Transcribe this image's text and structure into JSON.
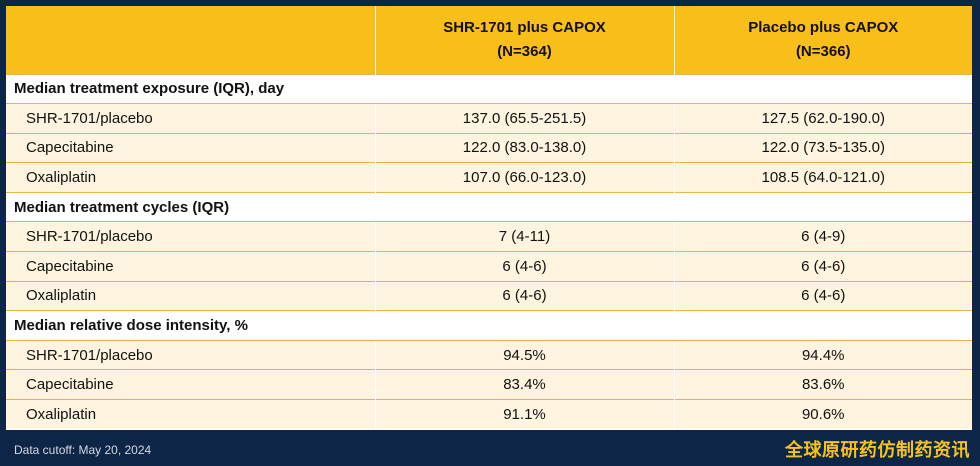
{
  "table": {
    "headers": [
      {
        "label": ""
      },
      {
        "line1": "SHR-1701 plus CAPOX",
        "line2": "(N=364)"
      },
      {
        "line1": "Placebo plus CAPOX",
        "line2": "(N=366)"
      }
    ],
    "sections": [
      {
        "title": "Median treatment exposure (IQR), day",
        "rows": [
          {
            "label": "SHR-1701/placebo",
            "shr": "137.0 (65.5-251.5)",
            "placebo": "127.5 (62.0-190.0)"
          },
          {
            "label": "Capecitabine",
            "shr": "122.0 (83.0-138.0)",
            "placebo": "122.0 (73.5-135.0)"
          },
          {
            "label": "Oxaliplatin",
            "shr": "107.0 (66.0-123.0)",
            "placebo": "108.5 (64.0-121.0)"
          }
        ]
      },
      {
        "title": "Median treatment cycles (IQR)",
        "rows": [
          {
            "label": "SHR-1701/placebo",
            "shr": "7 (4-11)",
            "placebo": "6 (4-9)"
          },
          {
            "label": "Capecitabine",
            "shr": "6 (4-6)",
            "placebo": "6 (4-6)"
          },
          {
            "label": "Oxaliplatin",
            "shr": "6 (4-6)",
            "placebo": "6 (4-6)"
          }
        ]
      },
      {
        "title": "Median relative dose intensity, %",
        "rows": [
          {
            "label": "SHR-1701/placebo",
            "shr": "94.5%",
            "placebo": "94.4%"
          },
          {
            "label": "Capecitabine",
            "shr": "83.4%",
            "placebo": "83.6%"
          },
          {
            "label": "Oxaliplatin",
            "shr": "91.1%",
            "placebo": "90.6%"
          }
        ]
      }
    ]
  },
  "footer": {
    "note": "Data cutoff: May 20, 2024",
    "watermark": "全球原研药仿制药资讯"
  },
  "colors": {
    "background": "#0d2547",
    "header": "#f8be1a",
    "row_fill": "#fef4df",
    "watermark": "#f8c21c"
  }
}
